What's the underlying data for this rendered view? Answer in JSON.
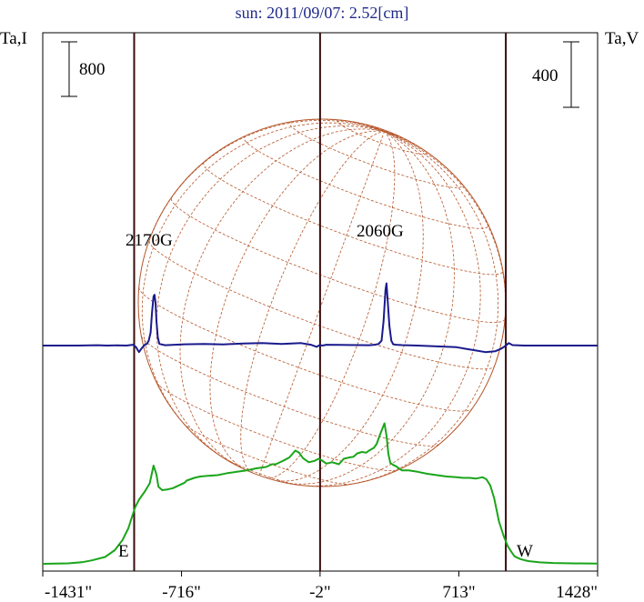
{
  "chart_data": {
    "type": "line",
    "title": "sun: 2011/09/07: 2.52[cm]",
    "left_axis_label": "Ta,I",
    "right_axis_label": "Ta,V",
    "left_scale_bar_label": "800",
    "right_scale_bar_label": "400",
    "x_tick_labels": [
      "-1431\"",
      "-716\"",
      "-2\"",
      "713\"",
      "1428\""
    ],
    "x_ticks": [
      -1431,
      -716,
      -2,
      713,
      1428
    ],
    "xlim": [
      -1431,
      1428
    ],
    "limb_labels": {
      "east": "E",
      "west": "W"
    },
    "limb_positions": [
      -960,
      -2,
      955
    ],
    "annotations": [
      {
        "text": "2170G",
        "x": -860
      },
      {
        "text": "2060G",
        "x": 340
      }
    ],
    "series": [
      {
        "role": "intensity",
        "color": "#1aa51a",
        "x": [
          -1431,
          -1300,
          -1230,
          -1180,
          -1110,
          -1060,
          -1020,
          -990,
          -970,
          -955,
          -935,
          -905,
          -880,
          -860,
          -845,
          -835,
          -815,
          -790,
          -760,
          -730,
          -700,
          -690,
          -670,
          -650,
          -620,
          -580,
          -530,
          -480,
          -430,
          -380,
          -330,
          -280,
          -250,
          -230,
          -200,
          -180,
          -160,
          -130,
          -110,
          -90,
          -60,
          -30,
          -10,
          5,
          30,
          60,
          95,
          120,
          150,
          170,
          190,
          215,
          235,
          250,
          275,
          290,
          305,
          320,
          330,
          340,
          350,
          360,
          375,
          390,
          400,
          420,
          455,
          500,
          550,
          600,
          650,
          700,
          735,
          770,
          800,
          835,
          855,
          875,
          895,
          920,
          945,
          965,
          985,
          1000,
          1030,
          1070,
          1130,
          1200,
          1300,
          1428
        ],
        "values": [
          0,
          6,
          23,
          50,
          100,
          200,
          350,
          520,
          700,
          830,
          940,
          1060,
          1180,
          1440,
          1310,
          1130,
          1080,
          1090,
          1110,
          1150,
          1190,
          1220,
          1240,
          1260,
          1280,
          1290,
          1300,
          1330,
          1350,
          1370,
          1400,
          1420,
          1460,
          1460,
          1500,
          1530,
          1560,
          1660,
          1630,
          1550,
          1490,
          1510,
          1540,
          1520,
          1470,
          1490,
          1460,
          1540,
          1560,
          1570,
          1620,
          1640,
          1630,
          1660,
          1700,
          1760,
          1880,
          1990,
          2060,
          1880,
          1610,
          1480,
          1450,
          1430,
          1410,
          1370,
          1370,
          1350,
          1320,
          1300,
          1280,
          1270,
          1260,
          1260,
          1250,
          1270,
          1240,
          1150,
          960,
          620,
          400,
          260,
          170,
          110,
          70,
          40,
          22,
          12,
          6,
          3
        ]
      },
      {
        "role": "circular-polarization",
        "color": "#1a1a8c",
        "x": [
          -1431,
          -1250,
          -1150,
          -1100,
          -1050,
          -1000,
          -980,
          -965,
          -950,
          -935,
          -920,
          -905,
          -895,
          -885,
          -875,
          -868,
          -860,
          -855,
          -850,
          -845,
          -838,
          -830,
          -800,
          -700,
          -600,
          -500,
          -400,
          -300,
          -200,
          -100,
          -50,
          -20,
          -5,
          10,
          30,
          100,
          200,
          250,
          280,
          300,
          315,
          325,
          335,
          340,
          345,
          355,
          365,
          375,
          390,
          420,
          500,
          600,
          700,
          750,
          800,
          850,
          900,
          930,
          950,
          970,
          990,
          1050,
          1150,
          1250,
          1428
        ],
        "values": [
          0,
          0,
          2,
          0,
          1,
          0,
          3,
          5,
          -10,
          -40,
          -15,
          5,
          10,
          30,
          80,
          200,
          300,
          310,
          260,
          150,
          50,
          10,
          2,
          8,
          10,
          7,
          12,
          15,
          10,
          15,
          5,
          -8,
          2,
          0,
          5,
          4,
          3,
          2,
          5,
          10,
          30,
          150,
          340,
          380,
          300,
          120,
          30,
          8,
          5,
          3,
          0,
          -5,
          -10,
          -20,
          -30,
          -40,
          -35,
          -20,
          -5,
          15,
          3,
          0,
          0,
          0,
          0
        ]
      }
    ],
    "grid": false
  }
}
